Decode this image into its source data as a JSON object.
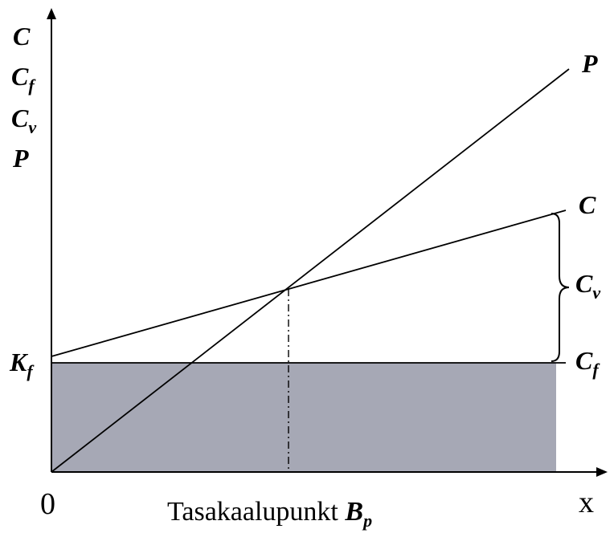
{
  "axes": {
    "y_labels": [
      {
        "main": "C",
        "sub": ""
      },
      {
        "main": "C",
        "sub": "f"
      },
      {
        "main": "C",
        "sub": "v"
      },
      {
        "main": "P",
        "sub": ""
      }
    ],
    "x_label": "x",
    "origin_label": "0",
    "fixed_cost_axis_label": {
      "main": "K",
      "sub": "f"
    }
  },
  "lines": {
    "revenue": {
      "main": "P",
      "sub": ""
    },
    "total_cost": {
      "main": "C",
      "sub": ""
    },
    "variable_cost": {
      "main": "C",
      "sub": "v"
    },
    "fixed_cost": {
      "main": "C",
      "sub": "f"
    }
  },
  "breakeven": {
    "prefix": "Tasakaalupunkt ",
    "main": "B",
    "sub": "p"
  },
  "colors": {
    "fixed_cost_area": "#a6a8b5",
    "line": "#000000",
    "background": "#ffffff"
  }
}
